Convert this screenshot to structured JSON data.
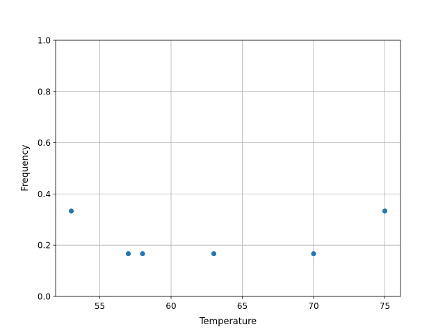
{
  "chart_data": {
    "type": "scatter",
    "title": "",
    "xlabel": "Temperature",
    "ylabel": "Frequency",
    "xlim": [
      51.9,
      76.1
    ],
    "ylim": [
      0,
      1
    ],
    "xticks": [
      55,
      60,
      65,
      70,
      75
    ],
    "xtick_labels": [
      "55",
      "60",
      "65",
      "70",
      "75"
    ],
    "yticks": [
      0,
      0.2,
      0.4,
      0.6,
      0.8,
      1.0
    ],
    "ytick_labels": [
      "0.0",
      "0.2",
      "0.4",
      "0.6",
      "0.8",
      "1.0"
    ],
    "grid": true,
    "color": "#1f77b4",
    "points": [
      {
        "x": 53,
        "y": 0.3333
      },
      {
        "x": 57,
        "y": 0.1667
      },
      {
        "x": 58,
        "y": 0.1667
      },
      {
        "x": 63,
        "y": 0.1667
      },
      {
        "x": 70,
        "y": 0.1667
      },
      {
        "x": 75,
        "y": 0.3333
      }
    ]
  }
}
